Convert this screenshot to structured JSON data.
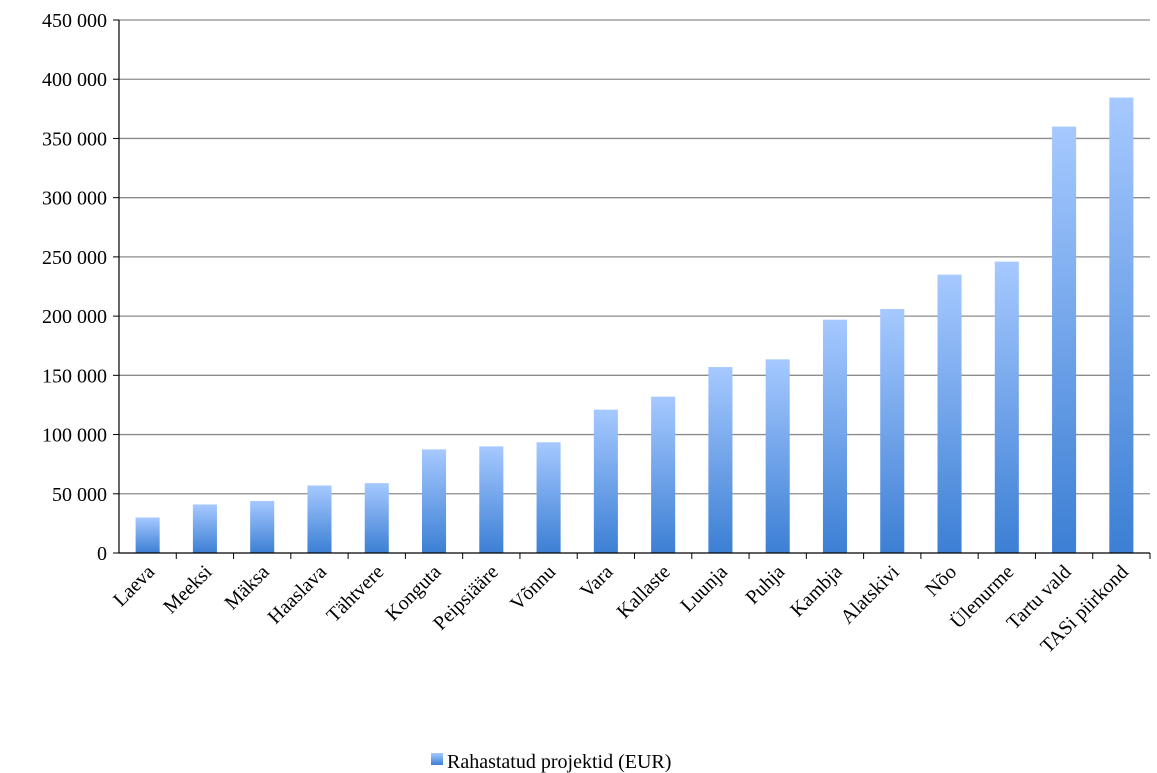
{
  "chart_data": {
    "type": "bar",
    "categories": [
      "Laeva",
      "Meeksi",
      "Mäksa",
      "Haaslava",
      "Tähtvere",
      "Konguta",
      "Peipsiääre",
      "Võnnu",
      "Vara",
      "Kallaste",
      "Luunja",
      "Puhja",
      "Kambja",
      "Alatskivi",
      "Nõo",
      "Ülenurme",
      "Tartu vald",
      "TASi piirkond"
    ],
    "series": [
      {
        "name": "Rahastatud projektid (EUR)",
        "values": [
          30000,
          41000,
          44000,
          57000,
          59000,
          87500,
          90000,
          93500,
          121000,
          132000,
          157000,
          163500,
          197000,
          206000,
          235000,
          246000,
          360000,
          384500
        ]
      }
    ],
    "ylim": [
      0,
      450000
    ],
    "yticks": [
      "0",
      "50 000",
      "100 000",
      "150 000",
      "200 000",
      "250 000",
      "300 000",
      "350 000",
      "400 000",
      "450 000"
    ],
    "grid": true,
    "legend_position": "bottom",
    "colors": {
      "bar_top": "#a6c9ff",
      "bar_bottom": "#3c7fd4",
      "grid": "#8c8c8c",
      "axis": "#000000"
    }
  }
}
